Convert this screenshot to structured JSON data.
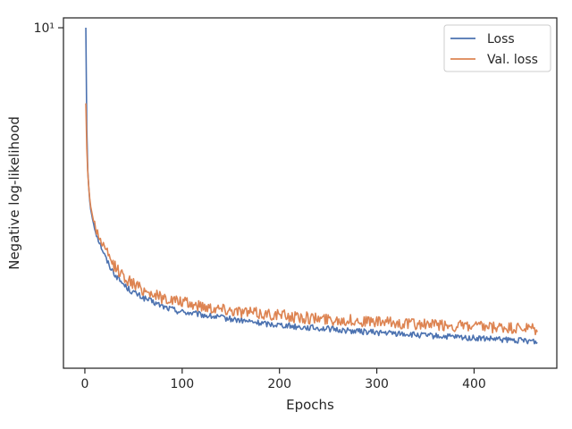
{
  "chart_data": {
    "type": "line",
    "title": "",
    "xlabel": "Epochs",
    "ylabel": "Negative log-likelihood",
    "xlim": [
      -22,
      485
    ],
    "ylim": [
      1.34,
      10.6
    ],
    "yscale": "log",
    "x_ticks": [
      0,
      100,
      200,
      300,
      400
    ],
    "x_tick_labels": [
      "0",
      "100",
      "200",
      "300",
      "400"
    ],
    "y_ticks": [
      10
    ],
    "y_tick_labels": [
      "10¹"
    ],
    "grid": false,
    "legend_position": "top-right",
    "series": [
      {
        "name": "Loss",
        "color": "#4c72b0",
        "points": [
          [
            1,
            10.0
          ],
          [
            2,
            5.5
          ],
          [
            3,
            4.3
          ],
          [
            4,
            3.9
          ],
          [
            5,
            3.6
          ],
          [
            6,
            3.42
          ],
          [
            8,
            3.22
          ],
          [
            10,
            3.08
          ],
          [
            12,
            2.96
          ],
          [
            14,
            2.86
          ],
          [
            16,
            2.78
          ],
          [
            18,
            2.7
          ],
          [
            20,
            2.62
          ],
          [
            22,
            2.55
          ],
          [
            24,
            2.49
          ],
          [
            26,
            2.44
          ],
          [
            28,
            2.39
          ],
          [
            30,
            2.35
          ],
          [
            33,
            2.3
          ],
          [
            36,
            2.25
          ],
          [
            39,
            2.21
          ],
          [
            42,
            2.17
          ],
          [
            45,
            2.14
          ],
          [
            48,
            2.11
          ],
          [
            51,
            2.09
          ],
          [
            54,
            2.07
          ],
          [
            57,
            2.05
          ],
          [
            60,
            2.03
          ],
          [
            64,
            2.01
          ],
          [
            68,
            1.99
          ],
          [
            72,
            1.97
          ],
          [
            76,
            1.95
          ],
          [
            80,
            1.93
          ],
          [
            85,
            1.91
          ],
          [
            90,
            1.9
          ],
          [
            95,
            1.88
          ],
          [
            100,
            1.87
          ],
          [
            106,
            1.86
          ],
          [
            112,
            1.85
          ],
          [
            118,
            1.84
          ],
          [
            124,
            1.83
          ],
          [
            130,
            1.82
          ],
          [
            137,
            1.81
          ],
          [
            144,
            1.8
          ],
          [
            151,
            1.79
          ],
          [
            158,
            1.78
          ],
          [
            165,
            1.77
          ],
          [
            172,
            1.76
          ],
          [
            180,
            1.75
          ],
          [
            188,
            1.74
          ],
          [
            196,
            1.735
          ],
          [
            204,
            1.73
          ],
          [
            212,
            1.72
          ],
          [
            220,
            1.71
          ],
          [
            228,
            1.705
          ],
          [
            236,
            1.7
          ],
          [
            244,
            1.695
          ],
          [
            252,
            1.69
          ],
          [
            260,
            1.68
          ],
          [
            268,
            1.675
          ],
          [
            276,
            1.67
          ],
          [
            284,
            1.665
          ],
          [
            292,
            1.66
          ],
          [
            300,
            1.655
          ],
          [
            310,
            1.65
          ],
          [
            320,
            1.645
          ],
          [
            330,
            1.64
          ],
          [
            340,
            1.63
          ],
          [
            350,
            1.625
          ],
          [
            360,
            1.62
          ],
          [
            370,
            1.615
          ],
          [
            380,
            1.61
          ],
          [
            390,
            1.605
          ],
          [
            400,
            1.6
          ],
          [
            410,
            1.595
          ],
          [
            420,
            1.59
          ],
          [
            430,
            1.585
          ],
          [
            440,
            1.58
          ],
          [
            450,
            1.578
          ],
          [
            460,
            1.575
          ],
          [
            465,
            1.56
          ]
        ]
      },
      {
        "name": "Val. loss",
        "color": "#dd8452",
        "points": [
          [
            1,
            6.4
          ],
          [
            2,
            4.9
          ],
          [
            3,
            4.25
          ],
          [
            4,
            3.9
          ],
          [
            5,
            3.65
          ],
          [
            6,
            3.48
          ],
          [
            8,
            3.28
          ],
          [
            10,
            3.14
          ],
          [
            12,
            3.03
          ],
          [
            14,
            2.94
          ],
          [
            16,
            2.86
          ],
          [
            18,
            2.79
          ],
          [
            20,
            2.72
          ],
          [
            22,
            2.66
          ],
          [
            24,
            2.6
          ],
          [
            26,
            2.55
          ],
          [
            28,
            2.5
          ],
          [
            30,
            2.46
          ],
          [
            33,
            2.41
          ],
          [
            36,
            2.36
          ],
          [
            39,
            2.32
          ],
          [
            42,
            2.28
          ],
          [
            45,
            2.25
          ],
          [
            48,
            2.22
          ],
          [
            51,
            2.2
          ],
          [
            54,
            2.17
          ],
          [
            57,
            2.15
          ],
          [
            60,
            2.13
          ],
          [
            64,
            2.11
          ],
          [
            68,
            2.09
          ],
          [
            72,
            2.07
          ],
          [
            76,
            2.05
          ],
          [
            80,
            2.03
          ],
          [
            85,
            2.02
          ],
          [
            90,
            2.0
          ],
          [
            95,
            1.99
          ],
          [
            100,
            1.98
          ],
          [
            106,
            1.96
          ],
          [
            112,
            1.95
          ],
          [
            118,
            1.94
          ],
          [
            124,
            1.93
          ],
          [
            130,
            1.92
          ],
          [
            137,
            1.91
          ],
          [
            144,
            1.9
          ],
          [
            151,
            1.89
          ],
          [
            158,
            1.88
          ],
          [
            165,
            1.87
          ],
          [
            172,
            1.86
          ],
          [
            180,
            1.85
          ],
          [
            188,
            1.845
          ],
          [
            196,
            1.84
          ],
          [
            204,
            1.83
          ],
          [
            212,
            1.82
          ],
          [
            220,
            1.81
          ],
          [
            228,
            1.805
          ],
          [
            236,
            1.8
          ],
          [
            244,
            1.795
          ],
          [
            252,
            1.79
          ],
          [
            260,
            1.785
          ],
          [
            268,
            1.78
          ],
          [
            276,
            1.775
          ],
          [
            284,
            1.77
          ],
          [
            292,
            1.765
          ],
          [
            300,
            1.76
          ],
          [
            310,
            1.755
          ],
          [
            320,
            1.75
          ],
          [
            330,
            1.745
          ],
          [
            340,
            1.74
          ],
          [
            350,
            1.735
          ],
          [
            360,
            1.73
          ],
          [
            370,
            1.725
          ],
          [
            380,
            1.72
          ],
          [
            390,
            1.715
          ],
          [
            400,
            1.71
          ],
          [
            410,
            1.705
          ],
          [
            420,
            1.7
          ],
          [
            430,
            1.7
          ],
          [
            440,
            1.695
          ],
          [
            450,
            1.69
          ],
          [
            460,
            1.69
          ],
          [
            465,
            1.66
          ]
        ]
      }
    ]
  }
}
